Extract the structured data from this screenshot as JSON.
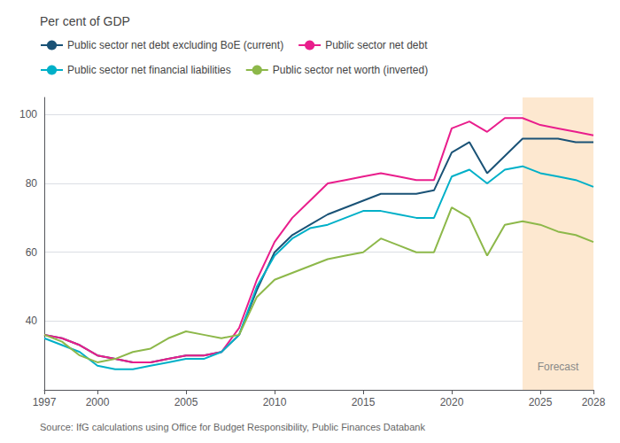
{
  "chart_data": {
    "type": "line",
    "title": "Per cent of GDP",
    "source": "Source: IfG calculations using Office for Budget Responsibility, Public Finances Databank",
    "x": [
      1997,
      1998,
      1999,
      2000,
      2001,
      2002,
      2003,
      2004,
      2005,
      2006,
      2007,
      2008,
      2009,
      2010,
      2011,
      2012,
      2013,
      2014,
      2015,
      2016,
      2017,
      2018,
      2019,
      2020,
      2021,
      2022,
      2023,
      2024,
      2025,
      2026,
      2027,
      2028
    ],
    "series": [
      {
        "name": "Public sector net debt excluding BoE (current)",
        "color": "#1a5276",
        "values": [
          36,
          35,
          33,
          30,
          29,
          28,
          28,
          29,
          30,
          30,
          31,
          36,
          49,
          60,
          65,
          68,
          71,
          73,
          75,
          77,
          77,
          77,
          78,
          89,
          92,
          83,
          88,
          93,
          93,
          93,
          92,
          92
        ]
      },
      {
        "name": "Public sector net debt",
        "color": "#e91e8c",
        "values": [
          36,
          35,
          33,
          30,
          29,
          28,
          28,
          29,
          30,
          30,
          31,
          38,
          52,
          63,
          70,
          75,
          80,
          81,
          82,
          83,
          82,
          81,
          81,
          96,
          98,
          95,
          99,
          99,
          97,
          96,
          95,
          94
        ]
      },
      {
        "name": "Public sector net financial liabilities",
        "color": "#00b0c8",
        "values": [
          35,
          33,
          31,
          27,
          26,
          26,
          27,
          28,
          29,
          29,
          31,
          36,
          50,
          59,
          64,
          67,
          68,
          70,
          72,
          72,
          71,
          70,
          70,
          82,
          84,
          80,
          84,
          85,
          83,
          82,
          81,
          79
        ]
      },
      {
        "name": "Public sector net worth (inverted)",
        "color": "#8db84a",
        "values": [
          36,
          34,
          30,
          28,
          29,
          31,
          32,
          35,
          37,
          36,
          35,
          36,
          47,
          52,
          54,
          56,
          58,
          59,
          60,
          64,
          62,
          60,
          60,
          73,
          70,
          59,
          68,
          69,
          68,
          66,
          65,
          63
        ]
      }
    ],
    "forecast": {
      "start": 2024,
      "end": 2028,
      "label": "Forecast",
      "color": "#fde8d0"
    },
    "xlim": [
      1997,
      2028
    ],
    "xticks": [
      1997,
      2000,
      2005,
      2010,
      2015,
      2020,
      2025,
      2028
    ],
    "ylim": [
      20,
      105
    ],
    "yticks": [
      40,
      60,
      80,
      100
    ],
    "grid": true,
    "legend": "top"
  }
}
